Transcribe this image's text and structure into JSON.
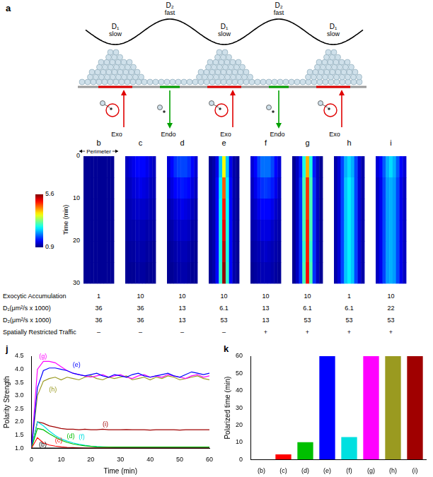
{
  "panel_a": {
    "panel": "a",
    "regions": [
      {
        "diffusion": "D₁",
        "speed": "slow",
        "traffic": "Exo"
      },
      {
        "diffusion": "D₂",
        "speed": "fast",
        "traffic": "Endo"
      },
      {
        "diffusion": "D₁",
        "speed": "slow",
        "traffic": "Exo"
      },
      {
        "diffusion": "D₂",
        "speed": "fast",
        "traffic": "Endo"
      },
      {
        "diffusion": "D₁",
        "speed": "slow",
        "traffic": "Exo"
      }
    ]
  },
  "kymographs": {
    "perimeter_label": "Perimeter",
    "ylabel": "Time (min)",
    "ylim": [
      0,
      30
    ],
    "yticks": [
      0,
      10,
      20,
      30
    ],
    "colorbar": {
      "range": [
        0.9,
        5.6
      ],
      "ticks": [
        0.9,
        5.6
      ]
    },
    "panels": [
      {
        "label": "b",
        "cells": [
          [
            1,
            1,
            1,
            1,
            1,
            1,
            1,
            1,
            1
          ],
          [
            1,
            1,
            1,
            1,
            1,
            1,
            1,
            1,
            1
          ],
          [
            1,
            1,
            1,
            1,
            1,
            1,
            1,
            1,
            1
          ],
          [
            1,
            1,
            1,
            1,
            1,
            1,
            1,
            1,
            1
          ],
          [
            1,
            1,
            1,
            1,
            1,
            1,
            1,
            1,
            1
          ],
          [
            1,
            1,
            1,
            1,
            1,
            1,
            1,
            1,
            1
          ]
        ]
      },
      {
        "label": "c",
        "cells": [
          [
            1.2,
            1.3,
            1.4,
            1.5,
            1.5,
            1.5,
            1.4,
            1.3,
            1.2
          ],
          [
            1.15,
            1.2,
            1.3,
            1.35,
            1.4,
            1.35,
            1.3,
            1.2,
            1.15
          ],
          [
            1.1,
            1.15,
            1.2,
            1.25,
            1.25,
            1.25,
            1.2,
            1.15,
            1.1
          ],
          [
            1.05,
            1.1,
            1.1,
            1.15,
            1.15,
            1.15,
            1.1,
            1.1,
            1.05
          ],
          [
            1,
            1.05,
            1.05,
            1.1,
            1.1,
            1.1,
            1.05,
            1.05,
            1
          ],
          [
            1,
            1,
            1,
            1.05,
            1.05,
            1.05,
            1,
            1,
            1
          ]
        ]
      },
      {
        "label": "d",
        "cells": [
          [
            1.3,
            1.5,
            1.7,
            1.8,
            1.8,
            1.8,
            1.7,
            1.5,
            1.3
          ],
          [
            1.2,
            1.35,
            1.5,
            1.55,
            1.6,
            1.55,
            1.5,
            1.35,
            1.2
          ],
          [
            1.1,
            1.2,
            1.3,
            1.35,
            1.4,
            1.35,
            1.3,
            1.2,
            1.1
          ],
          [
            1.05,
            1.1,
            1.2,
            1.25,
            1.25,
            1.25,
            1.2,
            1.1,
            1.05
          ],
          [
            1,
            1.05,
            1.1,
            1.15,
            1.15,
            1.15,
            1.1,
            1.05,
            1
          ],
          [
            1,
            1,
            1.05,
            1.1,
            1.1,
            1.1,
            1.05,
            1,
            1
          ]
        ]
      },
      {
        "label": "e",
        "cells": [
          [
            1,
            1.1,
            1.4,
            2.4,
            3.8,
            2.4,
            1.4,
            1.1,
            1
          ],
          [
            1,
            1.1,
            1.5,
            2.6,
            4.6,
            2.6,
            1.5,
            1.1,
            1
          ],
          [
            1,
            1.1,
            1.5,
            2.7,
            4.9,
            2.7,
            1.5,
            1.1,
            1
          ],
          [
            1,
            1.1,
            1.5,
            2.8,
            5.1,
            2.8,
            1.5,
            1.1,
            1
          ],
          [
            1,
            1.1,
            1.5,
            2.8,
            5.3,
            2.8,
            1.5,
            1.1,
            1
          ],
          [
            1,
            1.1,
            1.5,
            2.9,
            5.5,
            2.9,
            1.5,
            1.1,
            1
          ]
        ]
      },
      {
        "label": "f",
        "cells": [
          [
            1.3,
            1.5,
            1.8,
            2,
            2,
            2,
            1.8,
            1.5,
            1.3
          ],
          [
            1.2,
            1.4,
            1.6,
            1.7,
            1.75,
            1.7,
            1.6,
            1.4,
            1.2
          ],
          [
            1.15,
            1.25,
            1.4,
            1.5,
            1.5,
            1.5,
            1.4,
            1.25,
            1.15
          ],
          [
            1.1,
            1.15,
            1.25,
            1.35,
            1.35,
            1.35,
            1.25,
            1.15,
            1.1
          ],
          [
            1.05,
            1.1,
            1.15,
            1.2,
            1.25,
            1.2,
            1.15,
            1.1,
            1.05
          ],
          [
            1,
            1.05,
            1.1,
            1.15,
            1.15,
            1.15,
            1.1,
            1.05,
            1
          ]
        ]
      },
      {
        "label": "g",
        "cells": [
          [
            1,
            1.2,
            1.6,
            2.8,
            4.2,
            2.8,
            1.6,
            1.2,
            1
          ],
          [
            1,
            1.2,
            1.7,
            3,
            4.8,
            3,
            1.7,
            1.2,
            1
          ],
          [
            1,
            1.2,
            1.7,
            3,
            4.8,
            3,
            1.7,
            1.2,
            1
          ],
          [
            1,
            1.2,
            1.7,
            3,
            4.9,
            3,
            1.7,
            1.2,
            1
          ],
          [
            1,
            1.2,
            1.7,
            2.9,
            4.9,
            2.9,
            1.7,
            1.2,
            1
          ],
          [
            1,
            1.2,
            1.7,
            3,
            5,
            3,
            1.7,
            1.2,
            1
          ]
        ]
      },
      {
        "label": "h",
        "cells": [
          [
            1.1,
            1.3,
            1.8,
            2.3,
            2.5,
            2.3,
            1.8,
            1.3,
            1.1
          ],
          [
            1.1,
            1.3,
            1.8,
            2.4,
            2.6,
            2.4,
            1.8,
            1.3,
            1.1
          ],
          [
            1.1,
            1.3,
            1.8,
            2.4,
            2.6,
            2.4,
            1.8,
            1.3,
            1.1
          ],
          [
            1.1,
            1.3,
            1.8,
            2.4,
            2.6,
            2.4,
            1.8,
            1.3,
            1.1
          ],
          [
            1.1,
            1.3,
            1.8,
            2.4,
            2.6,
            2.4,
            1.8,
            1.3,
            1.1
          ],
          [
            1.1,
            1.3,
            1.8,
            2.4,
            2.6,
            2.4,
            1.8,
            1.3,
            1.1
          ]
        ]
      },
      {
        "label": "i",
        "cells": [
          [
            1.3,
            1.5,
            1.9,
            2.3,
            2.5,
            2.3,
            1.9,
            1.5,
            1.3
          ],
          [
            1.2,
            1.4,
            1.8,
            2.2,
            2.3,
            2.2,
            1.8,
            1.4,
            1.2
          ],
          [
            1.2,
            1.4,
            1.8,
            2.2,
            2.3,
            2.2,
            1.8,
            1.4,
            1.2
          ],
          [
            1.2,
            1.4,
            1.8,
            2.2,
            2.3,
            2.2,
            1.8,
            1.4,
            1.2
          ],
          [
            1.2,
            1.4,
            1.8,
            2.2,
            2.3,
            2.2,
            1.8,
            1.4,
            1.2
          ],
          [
            1.2,
            1.4,
            1.8,
            2.2,
            2.3,
            2.2,
            1.8,
            1.4,
            1.2
          ]
        ]
      }
    ]
  },
  "table": {
    "rows": [
      {
        "label": "Exocytic Accumulation",
        "values": [
          1,
          10,
          10,
          10,
          10,
          10,
          1,
          10
        ]
      },
      {
        "label": "D₁(μm²/s x 1000)",
        "values": [
          36,
          36,
          13,
          6.1,
          13,
          6.1,
          6.1,
          22
        ]
      },
      {
        "label": "D₂(μm²/s x 1000)",
        "values": [
          36,
          36,
          13,
          53,
          13,
          53,
          53,
          53
        ]
      },
      {
        "label": "Spatially Restricted Traffic",
        "values": [
          "–",
          "–",
          "–",
          "–",
          "+",
          "+",
          "+",
          "+"
        ]
      }
    ]
  },
  "chart_data": [
    {
      "panel": "j",
      "type": "line",
      "xlabel": "Time (min)",
      "ylabel": "Polarity Strength",
      "x": [
        0,
        2,
        4,
        6,
        8,
        10,
        12,
        14,
        16,
        18,
        20,
        22,
        24,
        26,
        28,
        30,
        32,
        34,
        36,
        38,
        40,
        42,
        44,
        46,
        48,
        50,
        52,
        54,
        56,
        58,
        60
      ],
      "xlim": [
        0,
        60
      ],
      "xticks": [
        0,
        10,
        20,
        30,
        40,
        50,
        60
      ],
      "ylim": [
        1,
        4.5
      ],
      "yticks": [
        {
          "value": 1,
          "label": "1.0"
        },
        1.5,
        {
          "value": 2,
          "label": "2.0"
        },
        2.5,
        {
          "value": 3,
          "label": "3.0"
        },
        3.5,
        {
          "value": 4,
          "label": "4.0"
        },
        4.5
      ],
      "grid": false,
      "series": [
        {
          "name": "(b)",
          "color": "#000000",
          "values": [
            1,
            1,
            1,
            1,
            1,
            1,
            1,
            1,
            1,
            1,
            1,
            1,
            1,
            1,
            1,
            1,
            1,
            1,
            1,
            1,
            1,
            1,
            1,
            1,
            1,
            1,
            1,
            1,
            1,
            1,
            1
          ]
        },
        {
          "name": "(c)",
          "color": "#ff0000",
          "values": [
            1,
            1.4,
            1.2,
            1.12,
            1.08,
            1.05,
            1.03,
            1.02,
            1.01,
            1,
            1,
            1,
            1,
            1,
            1,
            1,
            1,
            1,
            1,
            1,
            1,
            1,
            1,
            1,
            1,
            1,
            1,
            1,
            1,
            1,
            1
          ]
        },
        {
          "name": "(d)",
          "color": "#00c000",
          "values": [
            1,
            1.75,
            1.7,
            1.55,
            1.42,
            1.3,
            1.22,
            1.16,
            1.12,
            1.09,
            1.07,
            1.05,
            1.04,
            1.04,
            1.04,
            1.04,
            1.04,
            1.04,
            1.04,
            1.04,
            1.04,
            1.04,
            1.04,
            1.04,
            1.04,
            1.04,
            1.04,
            1.04,
            1.04,
            1.04,
            1.04
          ]
        },
        {
          "name": "(e)",
          "color": "#0000ff",
          "values": [
            1,
            3.3,
            3.95,
            4.05,
            4.05,
            4,
            3.95,
            3.85,
            3.8,
            3.75,
            3.8,
            3.85,
            3.75,
            3.7,
            3.8,
            3.75,
            3.7,
            3.8,
            3.85,
            3.75,
            3.7,
            3.75,
            3.8,
            3.85,
            3.75,
            3.7,
            3.8,
            3.9,
            3.85,
            3.8,
            3.85
          ]
        },
        {
          "name": "(f)",
          "color": "#00e0e0",
          "values": [
            1,
            2,
            1.85,
            1.65,
            1.48,
            1.35,
            1.27,
            1.2,
            1.15,
            1.11,
            1.08,
            1.06,
            1.05,
            1.04,
            1.03,
            1.03,
            1.03,
            1.03,
            1.03,
            1.03,
            1.03,
            1.03,
            1.03,
            1.03,
            1.03,
            1.03,
            1.03,
            1.03,
            1.03,
            1.03,
            1.03
          ]
        },
        {
          "name": "(g)",
          "color": "#ff00ff",
          "values": [
            1,
            4,
            4.3,
            4.3,
            4.25,
            4.1,
            3.95,
            3.85,
            3.8,
            3.75,
            3.7,
            3.75,
            3.8,
            3.7,
            3.75,
            3.8,
            3.7,
            3.65,
            3.75,
            3.8,
            3.7,
            3.75,
            3.7,
            3.8,
            3.75,
            3.7,
            3.65,
            3.75,
            3.8,
            3.7,
            3.75
          ]
        },
        {
          "name": "(h)",
          "color": "#9a9a20",
          "values": [
            1,
            3,
            3.55,
            3.65,
            3.7,
            3.6,
            3.7,
            3.65,
            3.6,
            3.7,
            3.75,
            3.65,
            3.6,
            3.7,
            3.65,
            3.7,
            3.75,
            3.6,
            3.65,
            3.7,
            3.6,
            3.7,
            3.65,
            3.75,
            3.7,
            3.6,
            3.65,
            3.7,
            3.75,
            3.65,
            3.6
          ]
        },
        {
          "name": "(i)",
          "color": "#a00000",
          "values": [
            1,
            2,
            1.95,
            1.85,
            1.8,
            1.75,
            1.72,
            1.72,
            1.7,
            1.72,
            1.7,
            1.7,
            1.72,
            1.7,
            1.7,
            1.7,
            1.71,
            1.7,
            1.7,
            1.7,
            1.69,
            1.7,
            1.7,
            1.7,
            1.7,
            1.69,
            1.7,
            1.7,
            1.7,
            1.7,
            1.7
          ]
        }
      ]
    },
    {
      "panel": "k",
      "type": "bar",
      "ylabel": "Polarized time (min)",
      "categories": [
        "(b)",
        "(c)",
        "(d)",
        "(e)",
        "(f)",
        "(g)",
        "(h)",
        "(i)"
      ],
      "values": [
        0,
        3,
        10,
        60,
        13,
        60,
        60,
        60
      ],
      "colors": [
        "#000000",
        "#ff0000",
        "#00c000",
        "#0000ff",
        "#00e0e0",
        "#ff00ff",
        "#9a9a20",
        "#a00000"
      ],
      "ylim": [
        0,
        60
      ],
      "yticks": [
        0,
        10,
        20,
        30,
        40,
        50,
        60
      ],
      "grid": false
    }
  ]
}
